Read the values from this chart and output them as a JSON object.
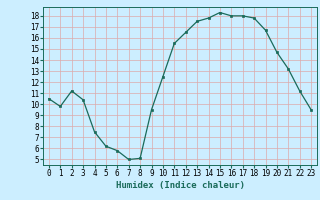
{
  "x": [
    0,
    1,
    2,
    3,
    4,
    5,
    6,
    7,
    8,
    9,
    10,
    11,
    12,
    13,
    14,
    15,
    16,
    17,
    18,
    19,
    20,
    21,
    22,
    23
  ],
  "y": [
    10.5,
    9.8,
    11.2,
    10.4,
    7.5,
    6.2,
    5.8,
    5.0,
    5.1,
    9.5,
    12.5,
    15.5,
    16.5,
    17.5,
    17.8,
    18.3,
    18.0,
    18.0,
    17.8,
    16.7,
    14.7,
    13.2,
    11.2,
    9.5
  ],
  "line_color": "#1a6b5a",
  "marker": "s",
  "marker_size": 2.0,
  "xlabel": "Humidex (Indice chaleur)",
  "ylim": [
    4.5,
    18.8
  ],
  "xlim": [
    -0.5,
    23.5
  ],
  "yticks": [
    5,
    6,
    7,
    8,
    9,
    10,
    11,
    12,
    13,
    14,
    15,
    16,
    17,
    18
  ],
  "xticks": [
    0,
    1,
    2,
    3,
    4,
    5,
    6,
    7,
    8,
    9,
    10,
    11,
    12,
    13,
    14,
    15,
    16,
    17,
    18,
    19,
    20,
    21,
    22,
    23
  ],
  "xtick_labels": [
    "0",
    "1",
    "2",
    "3",
    "4",
    "5",
    "6",
    "7",
    "8",
    "9",
    "10",
    "11",
    "12",
    "13",
    "14",
    "15",
    "16",
    "17",
    "18",
    "19",
    "20",
    "21",
    "22",
    "23"
  ],
  "bg_color": "#cceeff",
  "grid_color": "#aaddcc",
  "label_fontsize": 6.5,
  "tick_fontsize": 5.5,
  "linewidth": 0.9
}
